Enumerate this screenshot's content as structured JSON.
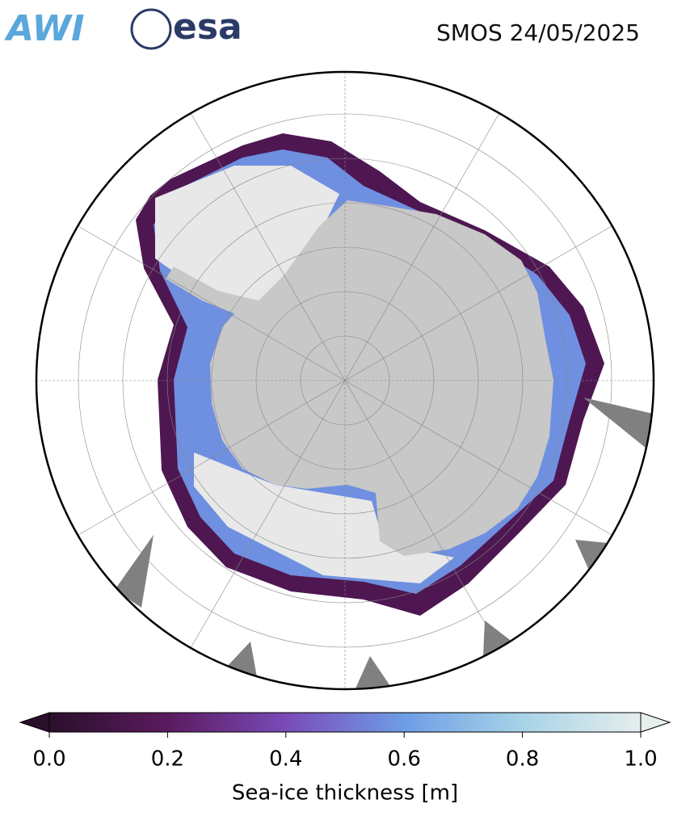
{
  "header": {
    "logos": [
      "AWI",
      "esa"
    ],
    "title": "SMOS 24/05/2025"
  },
  "colorbar": {
    "label": "Sea-ice thickness [m]",
    "lim": [
      0,
      1
    ],
    "ticks": [
      {
        "value": 0,
        "label": "0.0"
      },
      {
        "value": 0.2,
        "label": "0.2"
      },
      {
        "value": 0.4,
        "label": "0.4"
      },
      {
        "value": 0.6,
        "label": "0.6"
      },
      {
        "value": 0.8,
        "label": "0.8"
      },
      {
        "value": 1,
        "label": "1.0"
      }
    ],
    "colors": [
      "#2a0f2a",
      "#5a1a5e",
      "#7a4bb8",
      "#6e9de6",
      "#a7d3e6",
      "#e6eeee"
    ]
  }
}
